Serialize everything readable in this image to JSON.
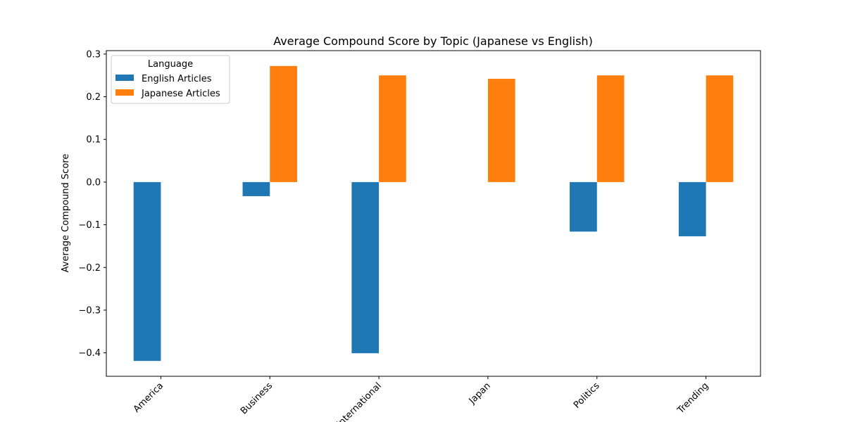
{
  "chart_data": {
    "type": "bar",
    "title": "Average Compound Score by Topic (Japanese vs English)",
    "xlabel": "",
    "ylabel": "Average Compound Score",
    "categories": [
      "America",
      "Business",
      "International",
      "Japan",
      "Politics",
      "Trending"
    ],
    "series": [
      {
        "name": "English Articles",
        "color": "#1f77b4",
        "values": [
          -0.419,
          -0.033,
          -0.401,
          null,
          -0.116,
          -0.127
        ]
      },
      {
        "name": "Japanese Articles",
        "color": "#ff7f0e",
        "values": [
          null,
          0.272,
          0.25,
          0.242,
          0.25,
          0.25
        ]
      }
    ],
    "ylim": [
      -0.455,
      0.308
    ],
    "yticks": [
      -0.4,
      -0.3,
      -0.2,
      -0.1,
      0.0,
      0.1,
      0.2,
      0.3
    ],
    "ytick_labels": [
      "−0.4",
      "−0.3",
      "−0.2",
      "−0.1",
      "0.0",
      "0.1",
      "0.2",
      "0.3"
    ],
    "legend": {
      "title": "Language",
      "placement": "top-left"
    },
    "grid": false
  }
}
